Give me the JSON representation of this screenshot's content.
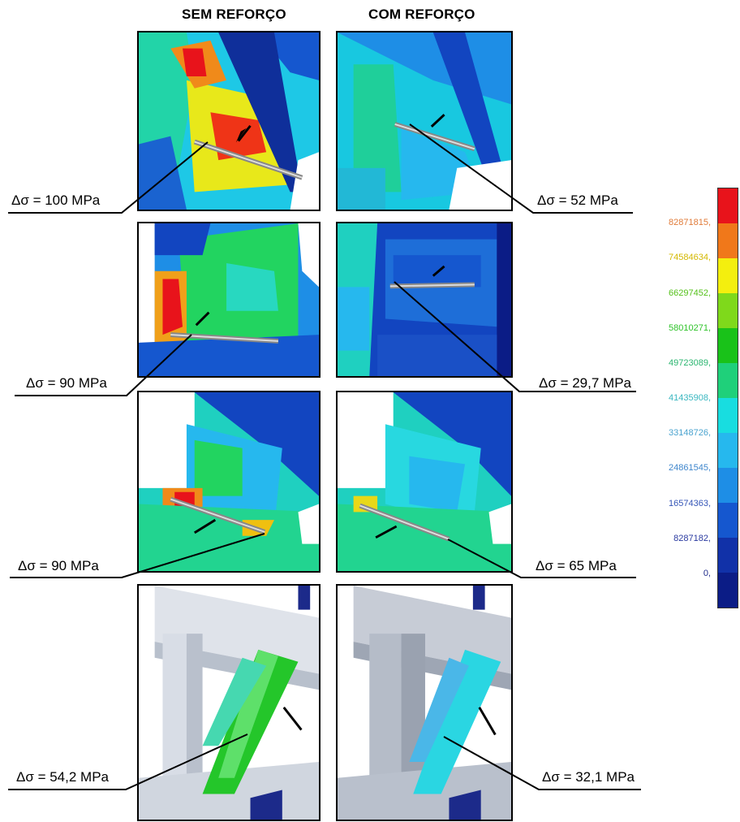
{
  "columns": {
    "left_title": "SEM REFORÇO",
    "right_title": "COM REFORÇO"
  },
  "rows": [
    {
      "left_label": "Δσ = 100 MPa",
      "right_label": "Δσ = 52 MPa"
    },
    {
      "left_label": "Δσ = 90 MPa",
      "right_label": "Δσ = 29,7 MPa"
    },
    {
      "left_label": "Δσ = 90 MPa",
      "right_label": "Δσ = 65 MPa"
    },
    {
      "left_label": "Δσ = 54,2 MPa",
      "right_label": "Δσ = 32,1 MPa"
    }
  ],
  "colorbar": {
    "labels": [
      "82871815,",
      "74584634,",
      "66297452,",
      "58010271,",
      "49723089,",
      "41435908,",
      "33148726,",
      "24861545,",
      "16574363,",
      "8287182,",
      "0,"
    ],
    "label_colors": [
      "#e07b39",
      "#d4b800",
      "#55c11b",
      "#2fc32a",
      "#2ab56f",
      "#3ab7c0",
      "#4aa3cf",
      "#3f86cc",
      "#3455b7",
      "#2a3aa0",
      "#1f2b8a"
    ],
    "colors": [
      "#e8131b",
      "#f0781a",
      "#f4ef0e",
      "#7fd91b",
      "#19c219",
      "#1fd07a",
      "#18dde0",
      "#26b8ee",
      "#1e8ee6",
      "#1557cf",
      "#1131a8",
      "#0b1c86"
    ]
  }
}
